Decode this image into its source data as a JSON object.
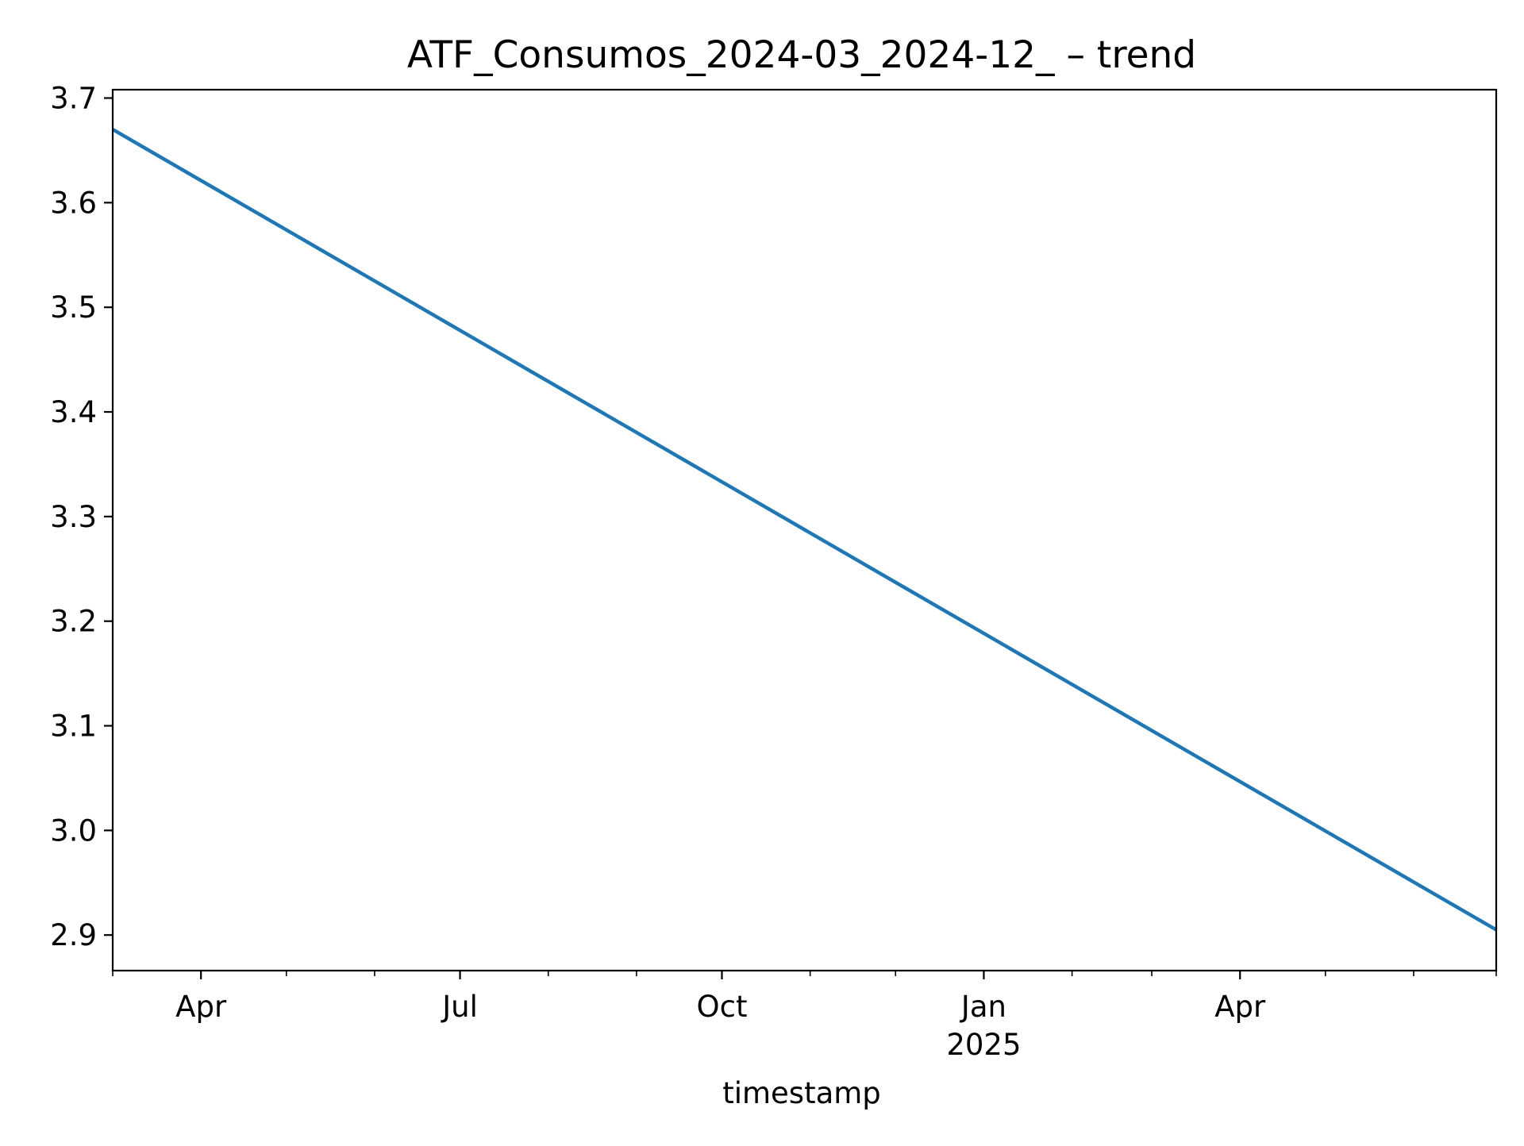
{
  "chart_data": {
    "type": "line",
    "title": "ATF_Consumos_2024-03_2024-12_ – trend",
    "xlabel": "timestamp",
    "ylabel": "",
    "x_range": [
      "2024-03-01",
      "2025-06-30"
    ],
    "y_range": [
      2.866,
      3.708
    ],
    "x_major_ticks": [
      {
        "date": "2024-04-01",
        "label": "Apr",
        "sublabel": ""
      },
      {
        "date": "2024-07-01",
        "label": "Jul",
        "sublabel": ""
      },
      {
        "date": "2024-10-01",
        "label": "Oct",
        "sublabel": ""
      },
      {
        "date": "2025-01-01",
        "label": "Jan",
        "sublabel": "2025"
      },
      {
        "date": "2025-04-01",
        "label": "Apr",
        "sublabel": ""
      }
    ],
    "x_minor_ticks": [
      "2024-03-01",
      "2024-05-01",
      "2024-06-01",
      "2024-08-01",
      "2024-09-01",
      "2024-11-01",
      "2024-12-01",
      "2025-02-01",
      "2025-03-01",
      "2025-05-01",
      "2025-06-01",
      "2025-06-30"
    ],
    "y_ticks": [
      {
        "value": 2.9,
        "label": "2.9"
      },
      {
        "value": 3.0,
        "label": "3.0"
      },
      {
        "value": 3.1,
        "label": "3.1"
      },
      {
        "value": 3.2,
        "label": "3.2"
      },
      {
        "value": 3.3,
        "label": "3.3"
      },
      {
        "value": 3.4,
        "label": "3.4"
      },
      {
        "value": 3.5,
        "label": "3.5"
      },
      {
        "value": 3.6,
        "label": "3.6"
      },
      {
        "value": 3.7,
        "label": "3.7"
      }
    ],
    "grid": false,
    "legend": "none",
    "series": [
      {
        "color": "#1f77b4",
        "points": [
          {
            "x": "2024-03-01",
            "y": 3.67
          },
          {
            "x": "2025-06-30",
            "y": 2.905
          }
        ]
      }
    ]
  }
}
